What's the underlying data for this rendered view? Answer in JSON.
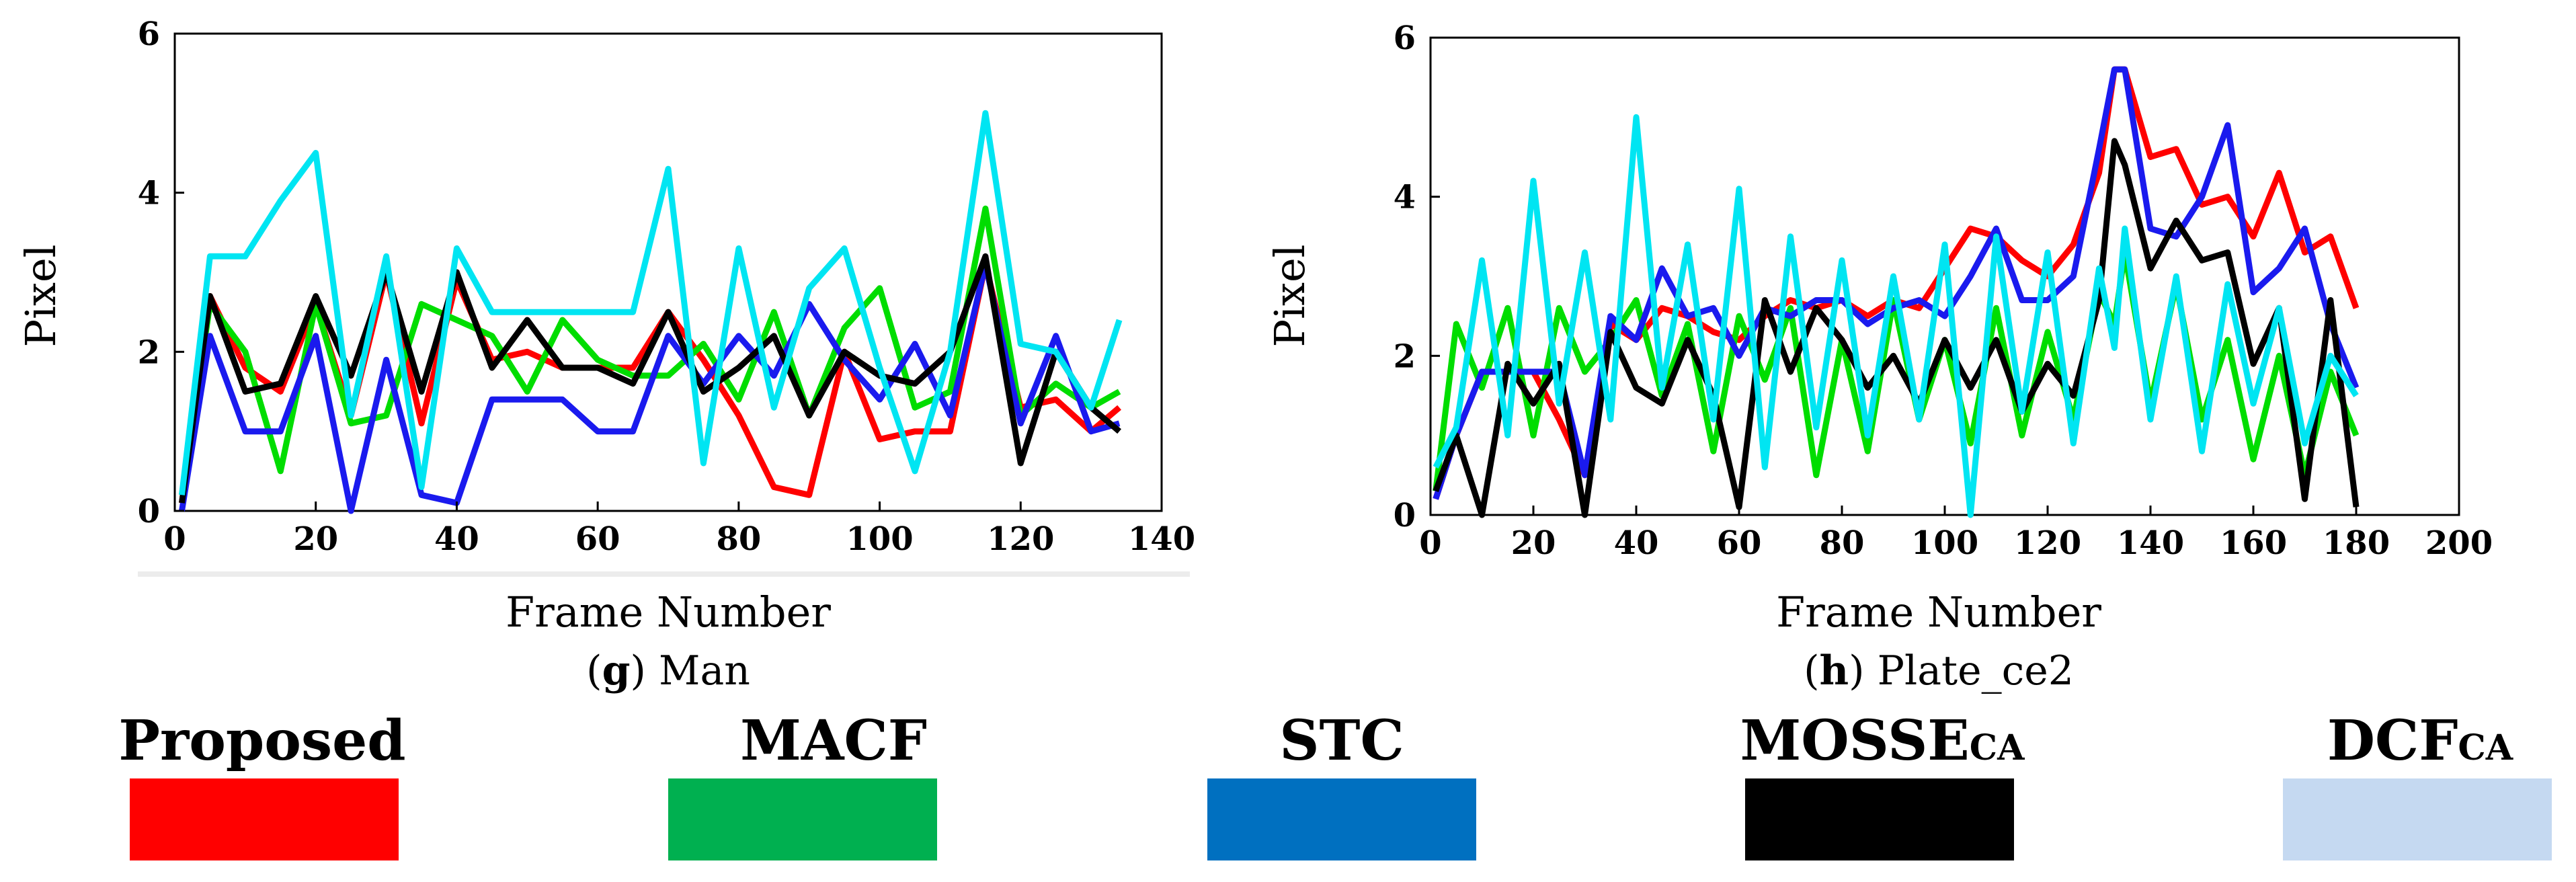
{
  "chart_data": [
    {
      "type": "line",
      "caption_letter": "g",
      "caption_text": " Man",
      "xlabel": "Frame Number",
      "ylabel": "Pixel",
      "xlim": [
        0,
        140
      ],
      "ylim": [
        0,
        6
      ],
      "xticks": [
        "0",
        "20",
        "40",
        "60",
        "80",
        "100",
        "120",
        "140"
      ],
      "yticks": [
        "0",
        "2",
        "4",
        "6"
      ],
      "x": [
        1,
        5,
        10,
        15,
        20,
        25,
        30,
        35,
        40,
        45,
        50,
        55,
        60,
        65,
        70,
        75,
        80,
        85,
        90,
        95,
        100,
        105,
        110,
        115,
        120,
        125,
        130,
        134
      ],
      "series": [
        {
          "name": "Proposed",
          "color": "#ff0000",
          "values": [
            0.1,
            2.7,
            1.8,
            1.5,
            2.6,
            1.2,
            3.0,
            1.1,
            2.9,
            1.9,
            2.0,
            1.8,
            1.8,
            1.8,
            2.5,
            1.9,
            1.2,
            0.3,
            0.2,
            2.0,
            0.9,
            1.0,
            1.0,
            3.1,
            1.3,
            1.4,
            1.0,
            1.3
          ]
        },
        {
          "name": "MACF",
          "color": "#00dd00",
          "values": [
            0.2,
            2.6,
            2.0,
            0.5,
            2.6,
            1.1,
            1.2,
            2.6,
            2.4,
            2.2,
            1.5,
            2.4,
            1.9,
            1.7,
            1.7,
            2.1,
            1.4,
            2.5,
            1.2,
            2.3,
            2.8,
            1.3,
            1.5,
            3.8,
            1.2,
            1.6,
            1.3,
            1.5
          ]
        },
        {
          "name": "STC",
          "color": "#1a1aee",
          "values": [
            0.0,
            2.2,
            1.0,
            1.0,
            2.2,
            0.0,
            1.9,
            0.2,
            0.1,
            1.4,
            1.4,
            1.4,
            1.0,
            1.0,
            2.2,
            1.6,
            2.2,
            1.7,
            2.6,
            1.9,
            1.4,
            2.1,
            1.2,
            3.1,
            1.1,
            2.2,
            1.0,
            1.1
          ]
        },
        {
          "name": "MOSSEca",
          "color": "#000000",
          "values": [
            0.1,
            2.7,
            1.5,
            1.6,
            2.7,
            1.7,
            3.0,
            1.5,
            3.0,
            1.8,
            2.4,
            1.8,
            1.8,
            1.6,
            2.5,
            1.5,
            1.8,
            2.2,
            1.2,
            2.0,
            1.7,
            1.6,
            2.0,
            3.2,
            0.6,
            2.0,
            1.3,
            1.0
          ]
        },
        {
          "name": "DCFca",
          "color": "#00e5f2",
          "values": [
            0.2,
            3.2,
            3.2,
            3.9,
            4.5,
            1.2,
            3.2,
            0.3,
            3.3,
            2.5,
            2.5,
            2.5,
            2.5,
            2.5,
            4.3,
            0.6,
            3.3,
            1.3,
            2.8,
            3.3,
            1.8,
            0.5,
            2.0,
            5.0,
            2.1,
            2.0,
            1.3,
            2.4
          ]
        }
      ]
    },
    {
      "type": "line",
      "caption_letter": "h",
      "caption_text": " Plate_ce2",
      "xlabel": "Frame Number",
      "ylabel": "Pixel",
      "xlim": [
        0,
        200
      ],
      "ylim": [
        0,
        6
      ],
      "xticks": [
        "0",
        "20",
        "40",
        "60",
        "80",
        "100",
        "120",
        "140",
        "160",
        "180",
        "200"
      ],
      "yticks": [
        "0",
        "2",
        "4",
        "6"
      ],
      "x": [
        1,
        5,
        10,
        15,
        20,
        25,
        30,
        35,
        40,
        45,
        50,
        55,
        60,
        65,
        70,
        75,
        80,
        85,
        90,
        95,
        100,
        105,
        110,
        115,
        120,
        125,
        130,
        133,
        135,
        140,
        145,
        150,
        155,
        160,
        165,
        170,
        175,
        180
      ],
      "series": [
        {
          "name": "Proposed",
          "color": "#ff0000",
          "values": [
            0.2,
            1.0,
            1.8,
            1.8,
            1.8,
            1.2,
            0.5,
            2.4,
            2.2,
            2.6,
            2.5,
            2.3,
            2.2,
            2.5,
            2.7,
            2.6,
            2.7,
            2.5,
            2.7,
            2.6,
            3.1,
            3.6,
            3.5,
            3.2,
            3.0,
            3.4,
            4.3,
            5.6,
            5.6,
            4.5,
            4.6,
            3.9,
            4.0,
            3.5,
            4.3,
            3.3,
            3.5,
            2.6
          ]
        },
        {
          "name": "MACF",
          "color": "#00dd00",
          "values": [
            0.3,
            2.4,
            1.6,
            2.6,
            1.0,
            2.6,
            1.8,
            2.2,
            2.7,
            1.5,
            2.4,
            0.8,
            2.5,
            1.7,
            2.6,
            0.5,
            2.2,
            0.8,
            2.7,
            1.2,
            2.2,
            0.9,
            2.6,
            1.0,
            2.3,
            1.2,
            2.8,
            2.4,
            3.3,
            1.4,
            2.9,
            1.2,
            2.2,
            0.7,
            2.0,
            0.5,
            1.8,
            1.0
          ]
        },
        {
          "name": "STC",
          "color": "#1a1aee",
          "values": [
            0.2,
            1.0,
            1.8,
            1.8,
            1.8,
            1.8,
            0.5,
            2.5,
            2.2,
            3.1,
            2.5,
            2.6,
            2.0,
            2.6,
            2.5,
            2.7,
            2.7,
            2.4,
            2.6,
            2.7,
            2.5,
            3.0,
            3.6,
            2.7,
            2.7,
            3.0,
            4.6,
            5.6,
            5.6,
            3.6,
            3.5,
            4.0,
            4.9,
            2.8,
            3.1,
            3.6,
            2.4,
            1.6
          ]
        },
        {
          "name": "MOSSEca",
          "color": "#000000",
          "values": [
            0.3,
            1.0,
            0.0,
            1.9,
            1.4,
            1.9,
            0.0,
            2.3,
            1.6,
            1.4,
            2.2,
            1.5,
            0.1,
            2.7,
            1.8,
            2.6,
            2.2,
            1.6,
            2.0,
            1.4,
            2.2,
            1.6,
            2.2,
            1.3,
            1.9,
            1.5,
            2.7,
            4.7,
            4.4,
            3.1,
            3.7,
            3.2,
            3.3,
            1.9,
            2.6,
            0.2,
            2.7,
            0.1
          ]
        },
        {
          "name": "DCFca",
          "color": "#00e5f2",
          "values": [
            0.6,
            1.1,
            3.2,
            1.0,
            4.2,
            1.4,
            3.3,
            1.2,
            5.0,
            1.6,
            3.4,
            1.2,
            4.1,
            0.6,
            3.5,
            1.1,
            3.2,
            1.0,
            3.0,
            1.2,
            3.4,
            0.0,
            3.5,
            1.3,
            3.3,
            0.9,
            3.1,
            2.1,
            3.6,
            1.2,
            3.0,
            0.8,
            2.9,
            1.4,
            2.6,
            0.9,
            2.0,
            1.5
          ]
        }
      ]
    }
  ],
  "legend": [
    {
      "name": "Proposed",
      "sub": "",
      "color": "#ff0000"
    },
    {
      "name": "MACF",
      "sub": "",
      "color": "#00b050"
    },
    {
      "name": "STC",
      "sub": "",
      "color": "#0070c0"
    },
    {
      "name": "MOSSE",
      "sub": "CA",
      "color": "#000000"
    },
    {
      "name": "DCF",
      "sub": "CA",
      "color": "#c5d9f1"
    }
  ]
}
